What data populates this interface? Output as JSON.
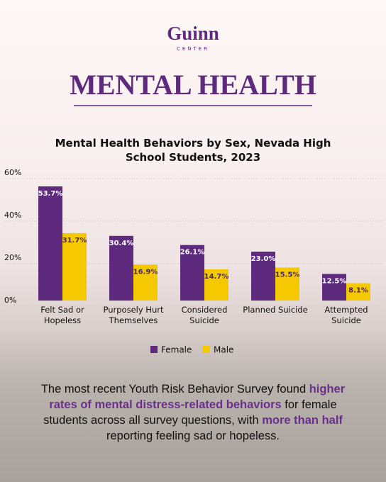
{
  "logo": {
    "name": "Guinn",
    "sub": "CENTER"
  },
  "headline": "MENTAL HEALTH",
  "chart_data": {
    "type": "bar",
    "title": "Mental Health Behaviors by Sex, Nevada High School Students, 2023",
    "categories": [
      "Felt Sad or Hopeless",
      "Purposely Hurt Themselves",
      "Considered Suicide",
      "Planned Suicide",
      "Attempted Suicide"
    ],
    "series": [
      {
        "name": "Female",
        "color": "#5e2a7e",
        "values": [
          53.7,
          30.4,
          26.1,
          23.0,
          12.5
        ],
        "value_labels": [
          "53.7%",
          "30.4%",
          "26.1%",
          "23.0%",
          "12.5%"
        ]
      },
      {
        "name": "Male",
        "color": "#f5c800",
        "values": [
          31.7,
          16.9,
          14.7,
          15.5,
          8.1
        ],
        "value_labels": [
          "31.7%",
          "16.9%",
          "14.7%",
          "15.5%",
          "8.1%"
        ]
      }
    ],
    "ylim": [
      0,
      60
    ],
    "yticks": [
      {
        "value": 0,
        "label": "0%"
      },
      {
        "value": 20,
        "label": "20%"
      },
      {
        "value": 40,
        "label": "40%"
      },
      {
        "value": 60,
        "label": "60%"
      }
    ],
    "grid": true,
    "legend": "bottom"
  },
  "caption": [
    {
      "text": "The most recent Youth Risk Behavior Survey found ",
      "highlight": false
    },
    {
      "text": "higher rates of mental distress-related behaviors",
      "highlight": true
    },
    {
      "text": " for female students across all survey questions, with ",
      "highlight": false
    },
    {
      "text": "more than half",
      "highlight": true
    },
    {
      "text": " reporting feeling sad or hopeless.",
      "highlight": false
    }
  ]
}
